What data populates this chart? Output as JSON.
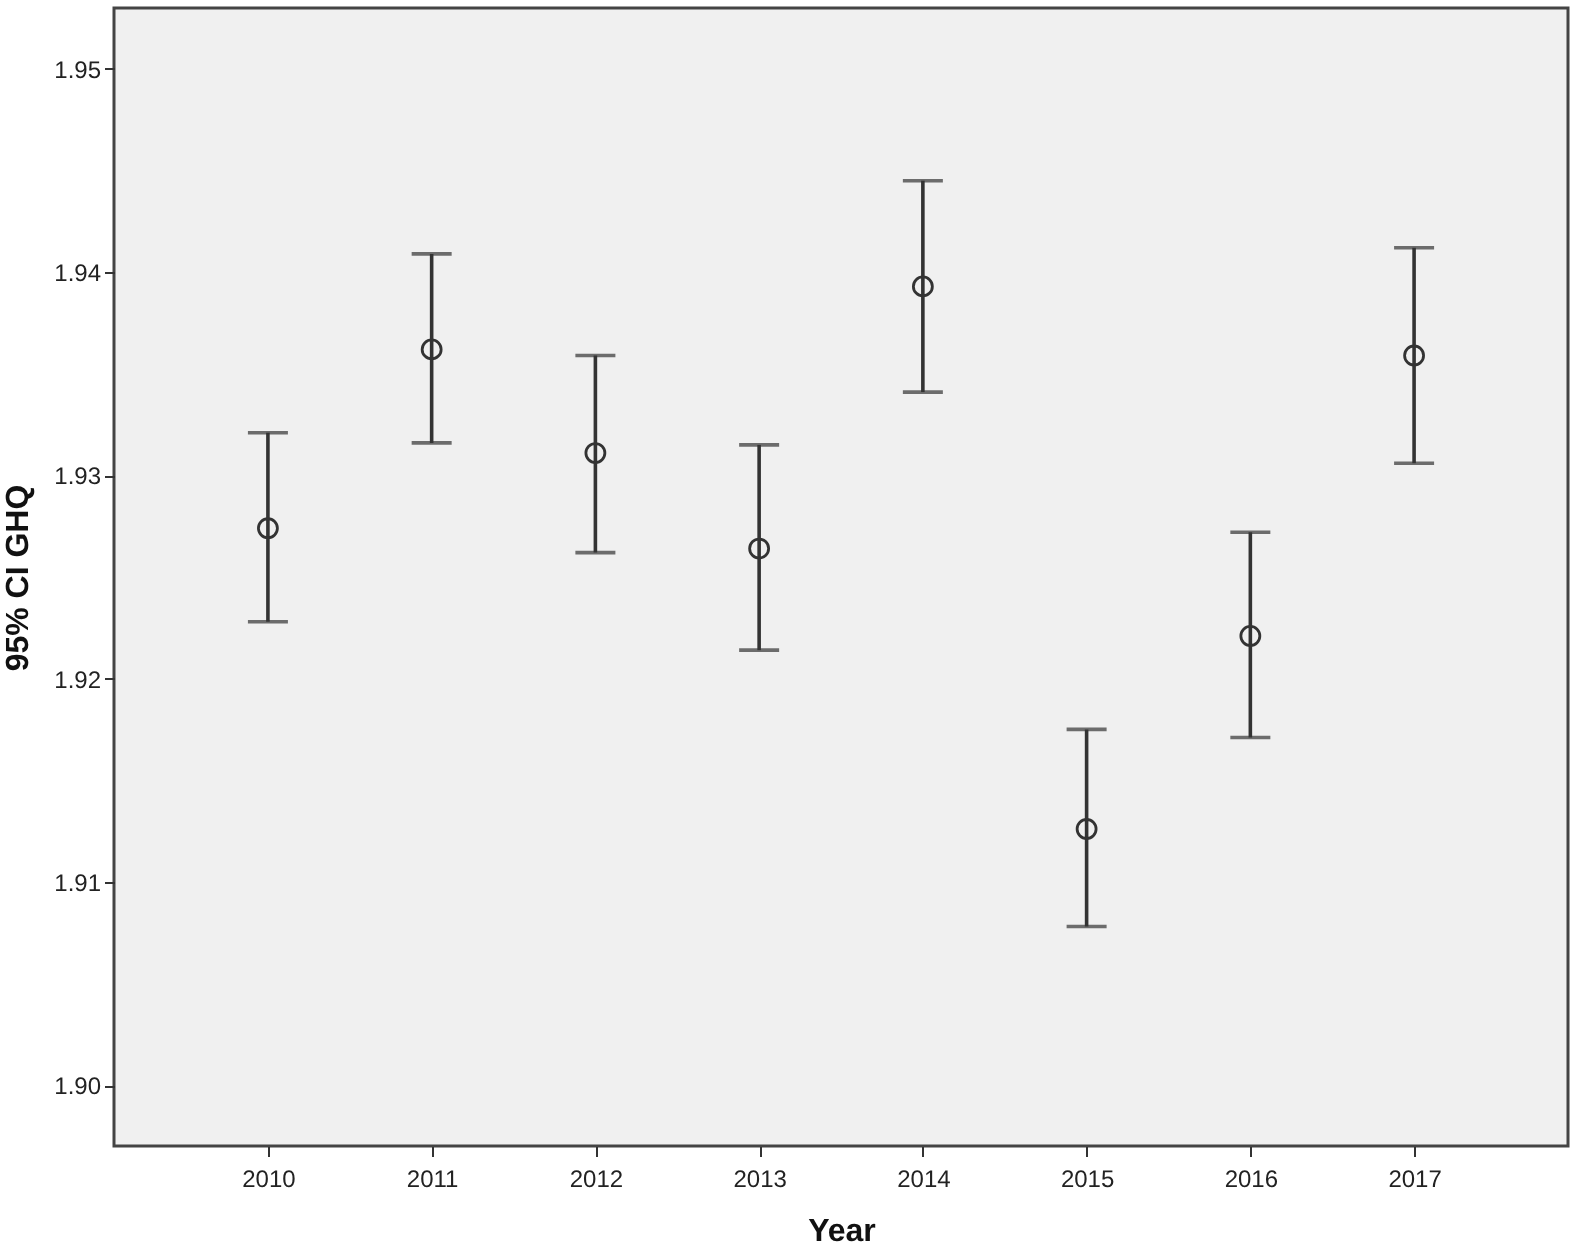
{
  "chart_data": {
    "type": "scatter",
    "xlabel": "Year",
    "ylabel": "95% CI GHQ",
    "categories": [
      "2010",
      "2011",
      "2012",
      "2013",
      "2014",
      "2015",
      "2016",
      "2017"
    ],
    "values": [
      1.9274,
      1.9362,
      1.9311,
      1.9264,
      1.9393,
      1.9126,
      1.9221,
      1.9359
    ],
    "errors": [
      [
        1.9228,
        1.9321
      ],
      [
        1.9316,
        1.9409
      ],
      [
        1.9262,
        1.9359
      ],
      [
        1.9214,
        1.9315
      ],
      [
        1.9341,
        1.9445
      ],
      [
        1.9078,
        1.9175
      ],
      [
        1.9171,
        1.9272
      ],
      [
        1.9306,
        1.9412
      ]
    ],
    "color": "#333333",
    "marker": "circle",
    "grid": false,
    "ylim": [
      1.897,
      1.953
    ],
    "yticks": [
      {
        "value": 1.9,
        "label": "1.90"
      },
      1.91,
      1.92,
      1.93,
      1.94,
      {
        "value": 1.95,
        "label": "1.95"
      }
    ]
  }
}
